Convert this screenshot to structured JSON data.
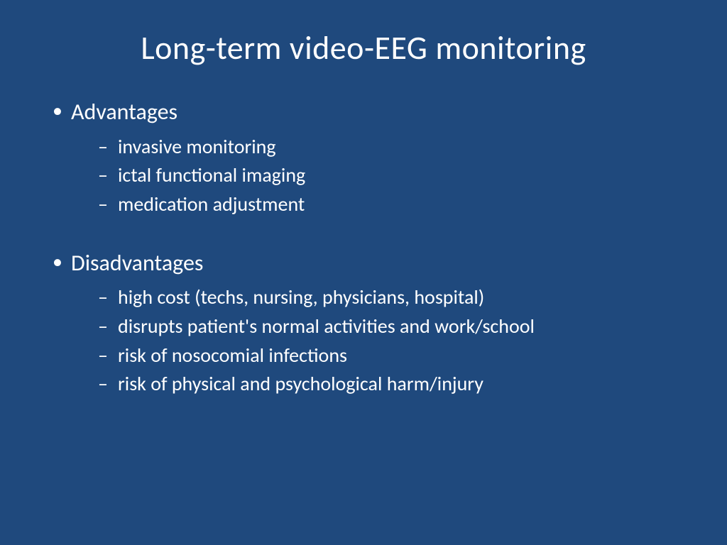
{
  "colors": {
    "background": "#1f497d",
    "text": "#ffffff"
  },
  "typography": {
    "font_family": "Calibri",
    "title_fontsize": 46,
    "heading_fontsize": 32,
    "subitem_fontsize": 28
  },
  "slide": {
    "title": "Long-term video-EEG monitoring",
    "sections": [
      {
        "heading": "Advantages",
        "items": [
          "invasive monitoring",
          "ictal functional imaging",
          "medication adjustment"
        ]
      },
      {
        "heading": "Disadvantages",
        "items": [
          "high cost (techs, nursing, physicians, hospital)",
          "disrupts patient's normal activities and work/school",
          "risk of nosocomial infections",
          "risk of physical and psychological harm/injury"
        ]
      }
    ]
  }
}
